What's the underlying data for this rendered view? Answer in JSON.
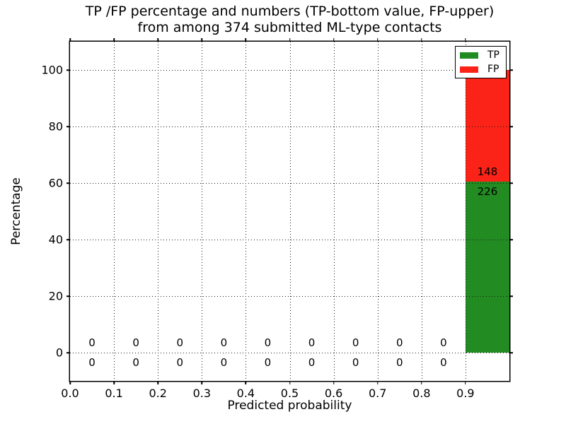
{
  "figure": {
    "title_line1": "TP /FP percentage and numbers (TP-bottom value, FP-upper)",
    "title_line2": "from among 374 submitted ML-type contacts"
  },
  "chart_data": {
    "type": "bar",
    "stacked": true,
    "title": "TP /FP percentage and numbers (TP-bottom value, FP-upper)\nfrom among 374 submitted ML-type contacts",
    "xlabel": "Predicted probability",
    "ylabel": "Percentage",
    "total_contacts": 374,
    "bin_width": 0.1,
    "bin_centers": [
      0.05,
      0.15,
      0.25,
      0.35,
      0.45,
      0.55,
      0.65,
      0.75,
      0.85,
      0.95
    ],
    "series": [
      {
        "name": "TP",
        "color": "#228b22",
        "counts": [
          0,
          0,
          0,
          0,
          0,
          0,
          0,
          0,
          0,
          226
        ]
      },
      {
        "name": "FP",
        "color": "#fb2318",
        "counts": [
          0,
          0,
          0,
          0,
          0,
          0,
          0,
          0,
          0,
          148
        ]
      }
    ],
    "xlim": [
      0.0,
      1.0
    ],
    "ylim": [
      -10,
      110
    ],
    "xtick_labels": [
      "0.0",
      "0.1",
      "0.2",
      "0.3",
      "0.4",
      "0.5",
      "0.6",
      "0.7",
      "0.8",
      "0.9"
    ],
    "ytick_values": [
      0,
      20,
      40,
      60,
      80,
      100
    ],
    "grid": "dotted, drawn above bars",
    "legend": {
      "position": "upper right",
      "entries": [
        "TP",
        "FP"
      ]
    },
    "count_label_offset_percent": 3.5
  }
}
